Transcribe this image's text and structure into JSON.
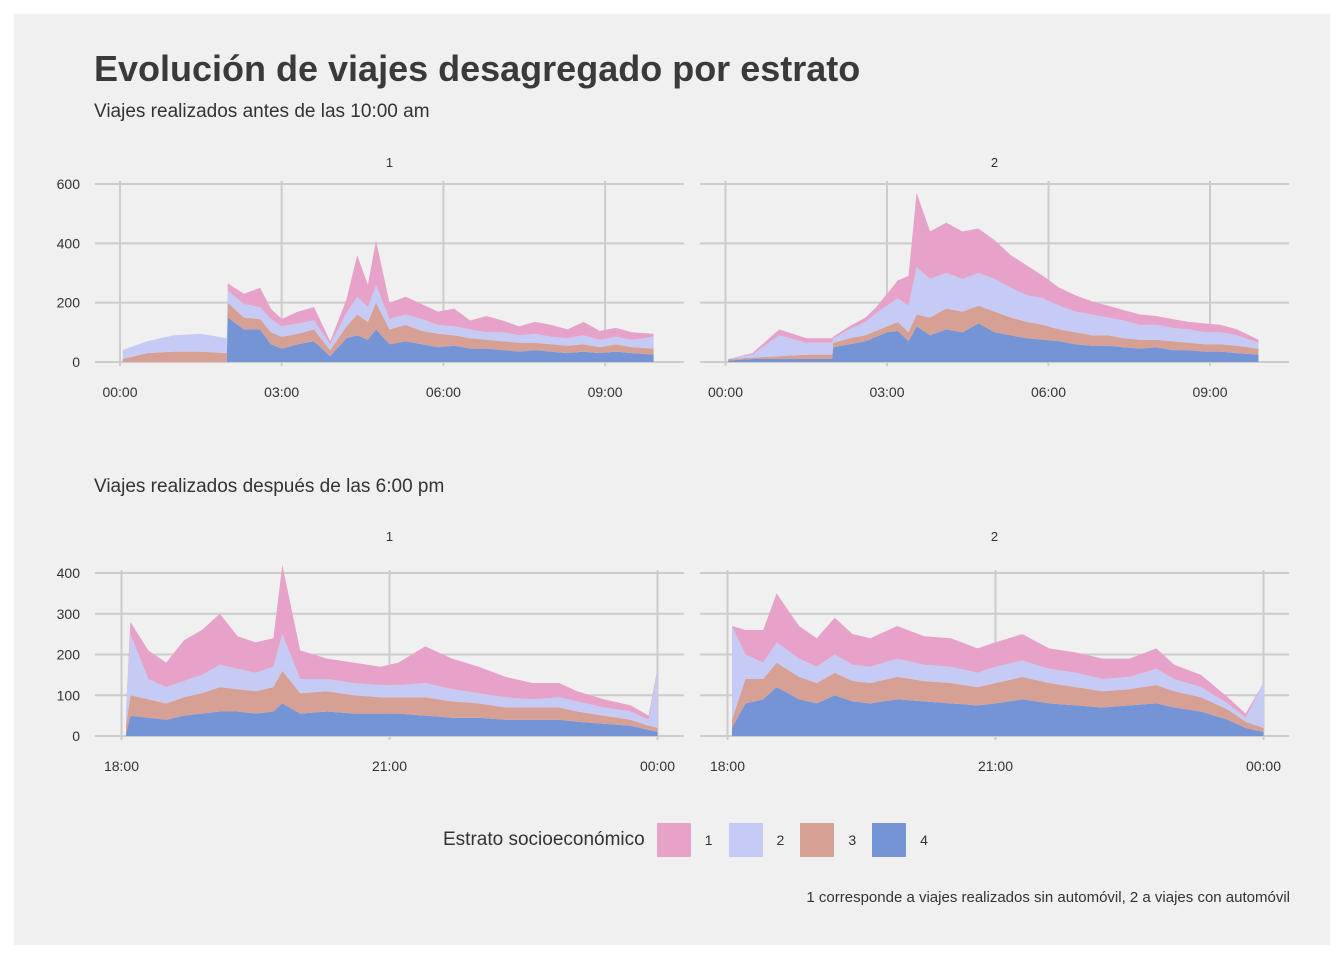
{
  "title": "Evolución de viajes desagregado por estrato",
  "caption": "1 corresponde a viajes realizados sin automóvil, 2 a viajes con automóvil",
  "legend": {
    "title": "Estrato socioeconómico",
    "items": [
      {
        "label": "1",
        "color": "#e6a2c8"
      },
      {
        "label": "2",
        "color": "#c5cbf5"
      },
      {
        "label": "3",
        "color": "#d7a095"
      },
      {
        "label": "4",
        "color": "#7594d6"
      }
    ]
  },
  "chart_data": [
    {
      "type": "area",
      "stacked": true,
      "subtitle": "Viajes realizados antes de las 10:00 am",
      "ylim": [
        0,
        600
      ],
      "yticks": [
        "0",
        "200",
        "400",
        "600"
      ],
      "xlim_hours": [
        0,
        10
      ],
      "xticks": [
        {
          "label": "00:00",
          "hour": 0
        },
        {
          "label": "03:00",
          "hour": 3
        },
        {
          "label": "06:00",
          "hour": 6
        },
        {
          "label": "09:00",
          "hour": 9
        }
      ],
      "facets": [
        {
          "label": "1",
          "x_hours": [
            0.05,
            0.5,
            1.0,
            1.5,
            1.98,
            2.0,
            2.3,
            2.6,
            2.8,
            3.0,
            3.3,
            3.6,
            3.9,
            4.2,
            4.4,
            4.6,
            4.75,
            5.0,
            5.3,
            5.6,
            5.9,
            6.2,
            6.5,
            6.8,
            7.1,
            7.4,
            7.7,
            8.0,
            8.3,
            8.6,
            8.9,
            9.2,
            9.5,
            9.9
          ],
          "series": [
            {
              "name": "4",
              "values": [
                0,
                0,
                0,
                0,
                0,
                150,
                110,
                110,
                60,
                45,
                60,
                70,
                20,
                80,
                90,
                75,
                110,
                60,
                70,
                60,
                50,
                55,
                45,
                45,
                40,
                35,
                40,
                35,
                30,
                35,
                30,
                35,
                30,
                25
              ]
            },
            {
              "name": "3",
              "values": [
                10,
                30,
                35,
                35,
                30,
                50,
                40,
                35,
                40,
                40,
                35,
                40,
                20,
                40,
                70,
                60,
                90,
                50,
                55,
                45,
                45,
                35,
                35,
                30,
                30,
                30,
                25,
                25,
                25,
                25,
                20,
                25,
                20,
                20
              ]
            },
            {
              "name": "2",
              "values": [
                30,
                40,
                55,
                60,
                50,
                40,
                45,
                40,
                45,
                35,
                35,
                30,
                20,
                45,
                60,
                50,
                60,
                35,
                35,
                40,
                30,
                30,
                30,
                25,
                30,
                25,
                30,
                25,
                25,
                30,
                25,
                25,
                25,
                40
              ]
            },
            {
              "name": "1",
              "values": [
                0,
                0,
                0,
                0,
                0,
                25,
                35,
                65,
                35,
                25,
                40,
                45,
                10,
                45,
                140,
                75,
                150,
                55,
                60,
                50,
                45,
                60,
                30,
                55,
                40,
                30,
                40,
                40,
                30,
                45,
                30,
                30,
                25,
                10
              ]
            }
          ]
        },
        {
          "label": "2",
          "x_hours": [
            0.05,
            0.5,
            1.0,
            1.5,
            1.98,
            2.0,
            2.3,
            2.6,
            2.8,
            3.0,
            3.2,
            3.4,
            3.55,
            3.8,
            4.1,
            4.4,
            4.7,
            5.0,
            5.3,
            5.6,
            5.9,
            6.2,
            6.5,
            6.8,
            7.1,
            7.4,
            7.7,
            8.0,
            8.3,
            8.6,
            8.9,
            9.2,
            9.5,
            9.9
          ],
          "series": [
            {
              "name": "4",
              "values": [
                5,
                10,
                10,
                10,
                10,
                50,
                60,
                70,
                85,
                100,
                105,
                70,
                120,
                90,
                110,
                100,
                130,
                100,
                90,
                80,
                75,
                70,
                60,
                55,
                55,
                50,
                45,
                50,
                40,
                40,
                35,
                35,
                30,
                25
              ]
            },
            {
              "name": "3",
              "values": [
                5,
                5,
                10,
                15,
                15,
                15,
                20,
                20,
                20,
                20,
                30,
                30,
                40,
                60,
                70,
                70,
                60,
                70,
                60,
                55,
                50,
                40,
                40,
                35,
                35,
                30,
                30,
                25,
                30,
                25,
                25,
                25,
                25,
                20
              ]
            },
            {
              "name": "2",
              "values": [
                0,
                10,
                70,
                40,
                40,
                15,
                30,
                45,
                60,
                70,
                80,
                90,
                160,
                130,
                120,
                110,
                110,
                110,
                100,
                90,
                90,
                80,
                70,
                70,
                60,
                60,
                50,
                50,
                45,
                45,
                40,
                40,
                35,
                20
              ]
            },
            {
              "name": "1",
              "values": [
                0,
                5,
                20,
                15,
                15,
                5,
                10,
                15,
                20,
                40,
                60,
                100,
                250,
                160,
                170,
                160,
                150,
                130,
                110,
                100,
                75,
                60,
                55,
                45,
                40,
                35,
                35,
                30,
                30,
                25,
                30,
                25,
                20,
                10
              ]
            }
          ]
        }
      ]
    },
    {
      "type": "area",
      "stacked": true,
      "subtitle": "Viajes realizados después de las 6:00 pm",
      "ylim": [
        0,
        400
      ],
      "yticks": [
        "0",
        "100",
        "200",
        "300",
        "400"
      ],
      "xlim_hours": [
        18,
        24
      ],
      "xticks": [
        {
          "label": "18:00",
          "hour": 18
        },
        {
          "label": "21:00",
          "hour": 21
        },
        {
          "label": "00:00",
          "hour": 24
        }
      ],
      "facets": [
        {
          "label": "1",
          "x_hours": [
            18.05,
            18.1,
            18.3,
            18.5,
            18.7,
            18.9,
            19.1,
            19.3,
            19.5,
            19.7,
            19.8,
            20.0,
            20.3,
            20.6,
            20.9,
            21.1,
            21.4,
            21.7,
            22.0,
            22.3,
            22.6,
            22.9,
            23.1,
            23.4,
            23.7,
            23.9,
            24.0
          ],
          "series": [
            {
              "name": "4",
              "values": [
                5,
                50,
                45,
                40,
                50,
                55,
                60,
                60,
                55,
                60,
                80,
                55,
                60,
                55,
                55,
                55,
                50,
                45,
                45,
                40,
                40,
                40,
                35,
                30,
                25,
                15,
                10
              ]
            },
            {
              "name": "3",
              "values": [
                20,
                50,
                45,
                40,
                45,
                50,
                60,
                55,
                55,
                60,
                80,
                50,
                50,
                45,
                40,
                40,
                45,
                40,
                35,
                30,
                30,
                30,
                25,
                20,
                15,
                10,
                10
              ]
            },
            {
              "name": "2",
              "values": [
                40,
                150,
                50,
                40,
                40,
                45,
                55,
                50,
                45,
                50,
                90,
                35,
                30,
                30,
                30,
                30,
                35,
                30,
                25,
                25,
                20,
                25,
                25,
                20,
                20,
                15,
                140
              ]
            },
            {
              "name": "1",
              "values": [
                0,
                30,
                70,
                60,
                100,
                110,
                125,
                80,
                75,
                70,
                170,
                70,
                50,
                50,
                45,
                55,
                90,
                75,
                65,
                50,
                40,
                35,
                25,
                20,
                15,
                10,
                5
              ]
            }
          ]
        },
        {
          "label": "2",
          "x_hours": [
            18.05,
            18.2,
            18.4,
            18.55,
            18.8,
            19.0,
            19.2,
            19.4,
            19.6,
            19.9,
            20.2,
            20.5,
            20.8,
            21.0,
            21.3,
            21.6,
            21.9,
            22.2,
            22.5,
            22.8,
            23.0,
            23.3,
            23.6,
            23.8,
            24.0
          ],
          "series": [
            {
              "name": "4",
              "values": [
                20,
                80,
                90,
                120,
                90,
                80,
                100,
                85,
                80,
                90,
                85,
                80,
                75,
                80,
                90,
                80,
                75,
                70,
                75,
                80,
                70,
                60,
                40,
                20,
                10
              ]
            },
            {
              "name": "3",
              "values": [
                20,
                60,
                50,
                60,
                55,
                50,
                55,
                50,
                50,
                55,
                50,
                50,
                45,
                50,
                55,
                50,
                45,
                40,
                40,
                45,
                40,
                35,
                25,
                15,
                10
              ]
            },
            {
              "name": "2",
              "values": [
                230,
                60,
                40,
                50,
                45,
                40,
                45,
                40,
                40,
                45,
                40,
                40,
                35,
                40,
                40,
                35,
                35,
                30,
                30,
                40,
                30,
                25,
                15,
                10,
                110
              ]
            },
            {
              "name": "1",
              "values": [
                0,
                60,
                80,
                120,
                80,
                70,
                90,
                75,
                70,
                80,
                70,
                70,
                60,
                60,
                65,
                50,
                50,
                50,
                45,
                50,
                35,
                30,
                15,
                10,
                0
              ]
            }
          ]
        }
      ]
    }
  ]
}
